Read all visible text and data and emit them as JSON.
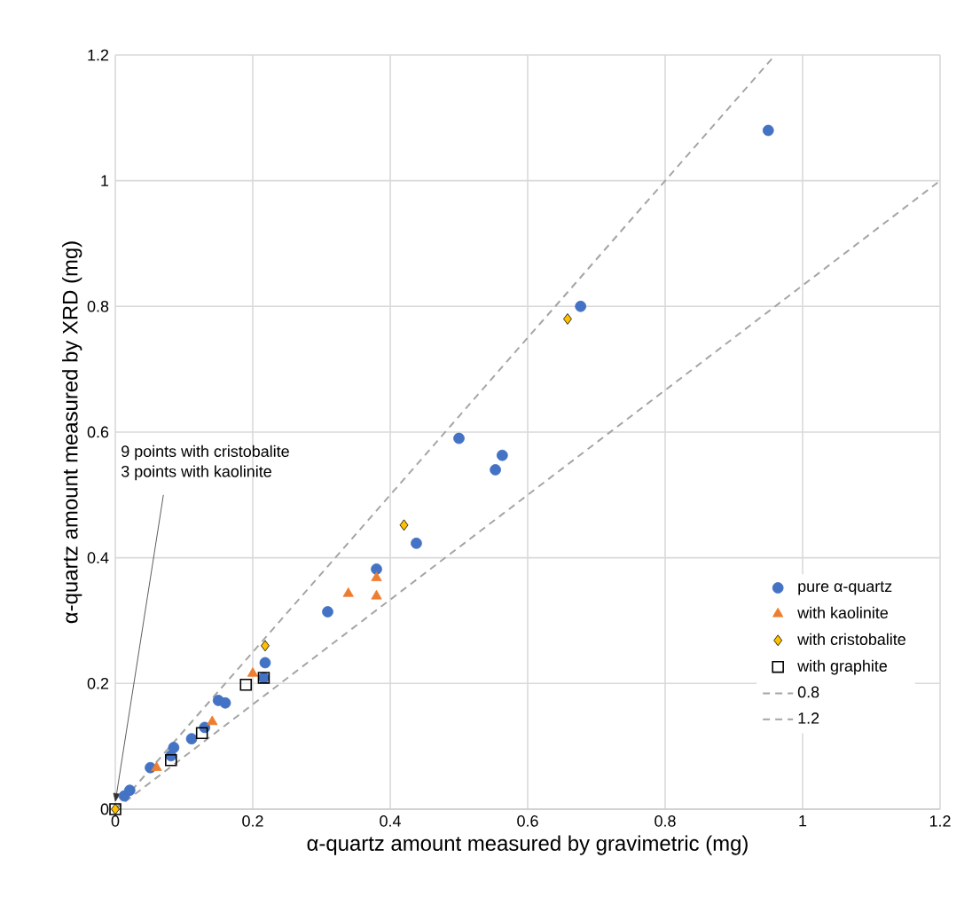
{
  "chart_data": {
    "type": "scatter",
    "xlabel": "α-quartz amount measured by gravimetric (mg)",
    "ylabel": "α-quartz amount measured by XRD (mg)",
    "xlim": [
      0,
      1.2
    ],
    "ylim": [
      0,
      1.2
    ],
    "xticks": [
      0,
      0.2,
      0.4,
      0.6,
      0.8,
      1,
      1.2
    ],
    "yticks": [
      0,
      0.2,
      0.4,
      0.6,
      0.8,
      1,
      1.2
    ],
    "grid": true,
    "legend": "right",
    "annotations": [
      "9 points with cristobalite",
      {
        "text": "3 points with kaolinite",
        "x": 0,
        "y": 0
      }
    ],
    "series": [
      {
        "name": "pure α-quartz",
        "color": "#4472c4",
        "marker": "circle",
        "x": [
          0.013,
          0.021,
          0.051,
          0.081,
          0.085,
          0.111,
          0.13,
          0.15,
          0.16,
          0.216,
          0.218,
          0.309,
          0.38,
          0.438,
          0.5,
          0.553,
          0.563,
          0.677,
          0.95
        ],
        "values": [
          0.021,
          0.03,
          0.066,
          0.085,
          0.098,
          0.112,
          0.13,
          0.173,
          0.169,
          0.209,
          0.233,
          0.314,
          0.382,
          0.423,
          0.59,
          0.54,
          0.563,
          0.8,
          1.08
        ]
      },
      {
        "name": "with kaolinite",
        "color": "#ed7d31",
        "marker": "triangle",
        "x": [
          0.06,
          0.141,
          0.2,
          0.339,
          0.38,
          0.38
        ],
        "values": [
          0.066,
          0.139,
          0.216,
          0.343,
          0.368,
          0.339
        ]
      },
      {
        "name": "with cristobalite",
        "color": "#ffc000",
        "marker": "diamond",
        "x": [
          0,
          0.218,
          0.42,
          0.658
        ],
        "values": [
          0,
          0.26,
          0.452,
          0.78
        ]
      },
      {
        "name": "with graphite",
        "color": "#000000",
        "marker": "square",
        "x": [
          0,
          0.081,
          0.126,
          0.19,
          0.216
        ],
        "values": [
          0,
          0.078,
          0.121,
          0.198,
          0.209
        ]
      },
      {
        "name": "0.8",
        "type": "line",
        "color": "#a5a5a5",
        "line_style": "dashed",
        "marker": "none",
        "x": [
          0,
          0.96
        ],
        "values": [
          0,
          1.2
        ]
      },
      {
        "name": "1.2",
        "type": "line",
        "color": "#a5a5a5",
        "line_style": "dashed",
        "marker": "none",
        "x": [
          0,
          1.2
        ],
        "values": [
          0,
          1.0
        ]
      }
    ]
  }
}
